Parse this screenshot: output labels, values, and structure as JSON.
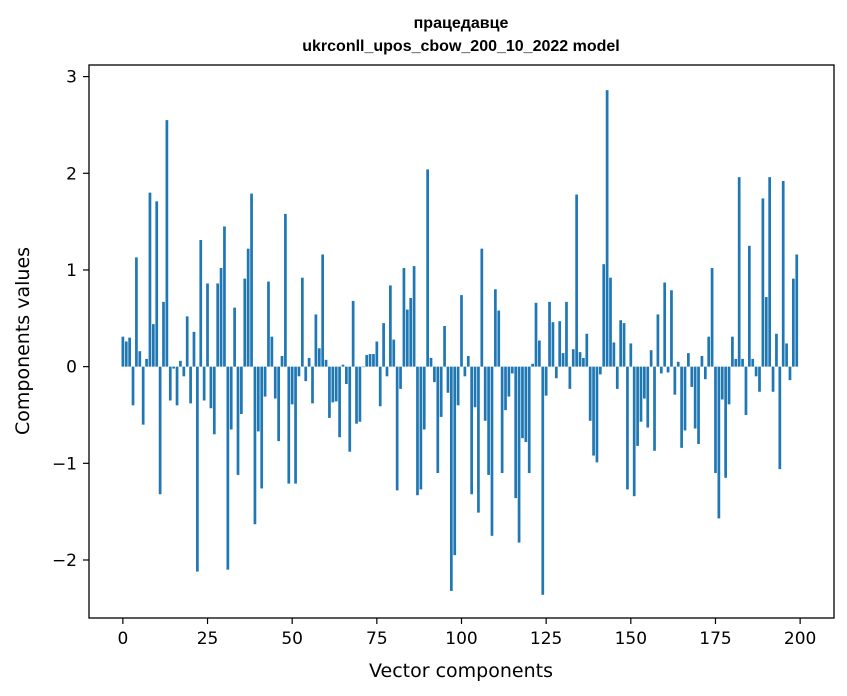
{
  "chart_data": {
    "type": "bar",
    "title": "працедавце",
    "subtitle": "ukrconll_upos_cbow_200_10_2022 model",
    "xlabel": "Vector components",
    "ylabel": "Components values",
    "xlim": [
      -10,
      210
    ],
    "ylim": [
      -2.6,
      3.12
    ],
    "xticks": [
      0,
      25,
      50,
      75,
      100,
      125,
      150,
      175,
      200
    ],
    "yticks": [
      -2,
      -1,
      0,
      1,
      2,
      3
    ],
    "ytick_labels": [
      "−2",
      "−1",
      "0",
      "1",
      "2",
      "3"
    ],
    "bar_color": "#1f77b4",
    "grid": false,
    "series": [
      {
        "values": [
          0.31,
          0.26,
          0.3,
          -0.4,
          1.13,
          0.16,
          -0.6,
          0.08,
          1.8,
          0.44,
          1.71,
          -1.32,
          0.67,
          2.55,
          -0.35,
          -0.02,
          -0.4,
          0.06,
          -0.1,
          0.52,
          -0.38,
          0.36,
          -2.12,
          1.31,
          -0.35,
          0.86,
          -0.43,
          -0.7,
          0.86,
          1.02,
          1.45,
          -2.1,
          -0.65,
          0.61,
          -1.12,
          -0.49,
          0.91,
          1.22,
          1.79,
          -1.63,
          -0.67,
          -1.26,
          -0.31,
          0.88,
          0.31,
          -0.33,
          -0.77,
          0.11,
          1.58,
          -1.21,
          -0.39,
          -1.21,
          -0.1,
          0.92,
          -0.15,
          0.09,
          -0.38,
          0.54,
          0.19,
          1.16,
          0.07,
          -0.53,
          -0.37,
          -0.36,
          -0.73,
          0.02,
          -0.18,
          -0.88,
          0.68,
          -0.59,
          -0.57,
          0.0,
          0.12,
          0.13,
          0.13,
          0.26,
          -0.41,
          0.45,
          -0.1,
          0.84,
          0.28,
          -1.28,
          -0.23,
          1.02,
          0.59,
          0.71,
          1.04,
          -1.33,
          -1.27,
          -0.65,
          2.04,
          0.09,
          -0.16,
          -1.1,
          -0.52,
          0.42,
          -0.27,
          -2.32,
          -1.95,
          -0.4,
          0.74,
          -0.1,
          0.11,
          -1.32,
          -0.42,
          -1.51,
          1.22,
          -0.56,
          -1.12,
          -1.75,
          0.8,
          0.58,
          -1.1,
          -0.45,
          -0.31,
          -0.07,
          -1.36,
          -1.82,
          -0.74,
          -0.78,
          -1.1,
          0.03,
          0.66,
          0.27,
          -2.36,
          -0.3,
          0.67,
          0.46,
          -0.12,
          0.47,
          0.14,
          0.67,
          -0.23,
          0.18,
          1.78,
          0.15,
          0.09,
          0.34,
          -0.56,
          -0.92,
          -0.99,
          -0.08,
          1.06,
          2.86,
          0.92,
          0.25,
          -0.23,
          0.48,
          0.45,
          -1.27,
          0.24,
          -1.34,
          -0.82,
          -0.57,
          -0.33,
          -0.63,
          0.17,
          -0.87,
          0.54,
          -0.07,
          0.87,
          -0.06,
          0.79,
          -0.29,
          0.05,
          -0.84,
          -0.66,
          0.14,
          -0.21,
          -0.64,
          -0.8,
          0.11,
          -0.13,
          0.31,
          1.02,
          -1.1,
          -1.57,
          -0.34,
          -1.15,
          -0.39,
          0.31,
          0.08,
          1.96,
          0.08,
          -0.5,
          1.25,
          0.08,
          -0.1,
          -0.26,
          1.74,
          0.72,
          1.96,
          -0.26,
          0.34,
          -1.06,
          1.92,
          0.24,
          -0.14,
          0.91,
          1.16
        ]
      }
    ]
  }
}
